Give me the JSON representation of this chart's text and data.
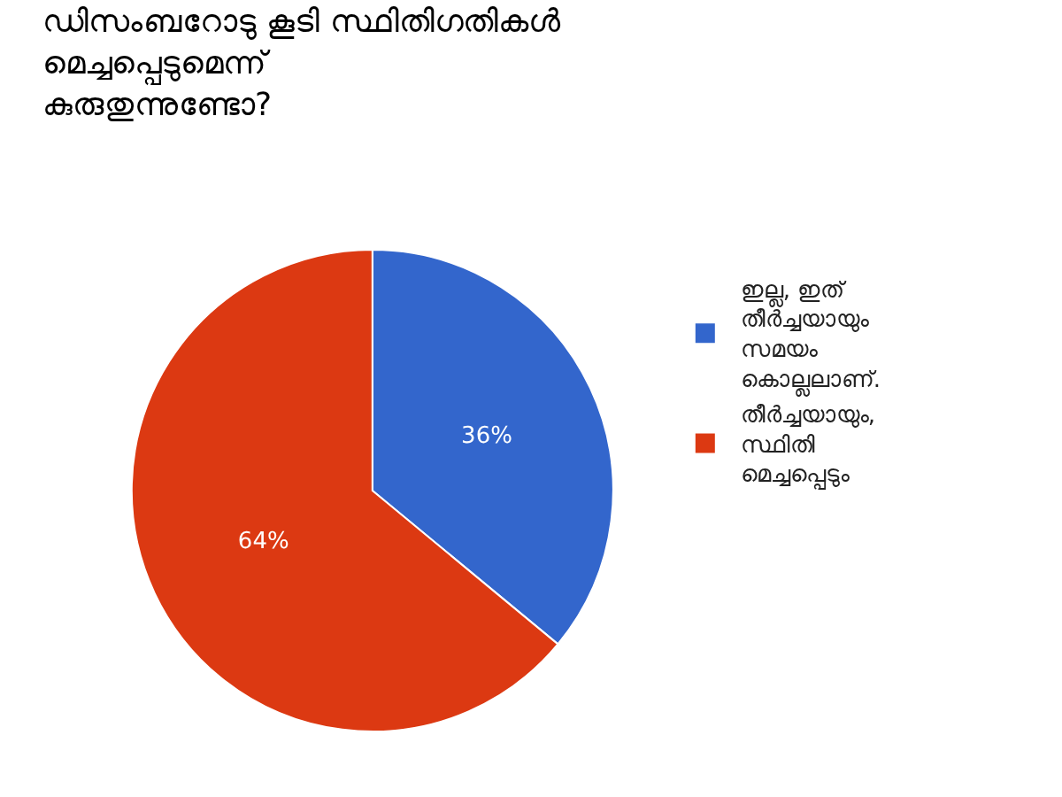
{
  "chart_data": {
    "type": "pie",
    "title": "ഡിസംബറോടു കൂടി സ്ഥിതിഗതികൾ മെച്ചപ്പെടുമെന്ന് കുരുതുന്നുണ്ടോ?",
    "categories": [
      "ഇല്ല, ഇത് തീർച്ചയായും സമയം കൊല്ലലാണ്.",
      "തീർച്ചയായും, സ്ഥിതി മെച്ചപ്പെടും"
    ],
    "values": [
      36,
      64
    ],
    "value_labels": [
      "36%",
      "64%"
    ],
    "colors": [
      "#3366cc",
      "#dc3912"
    ],
    "legend": "right"
  }
}
